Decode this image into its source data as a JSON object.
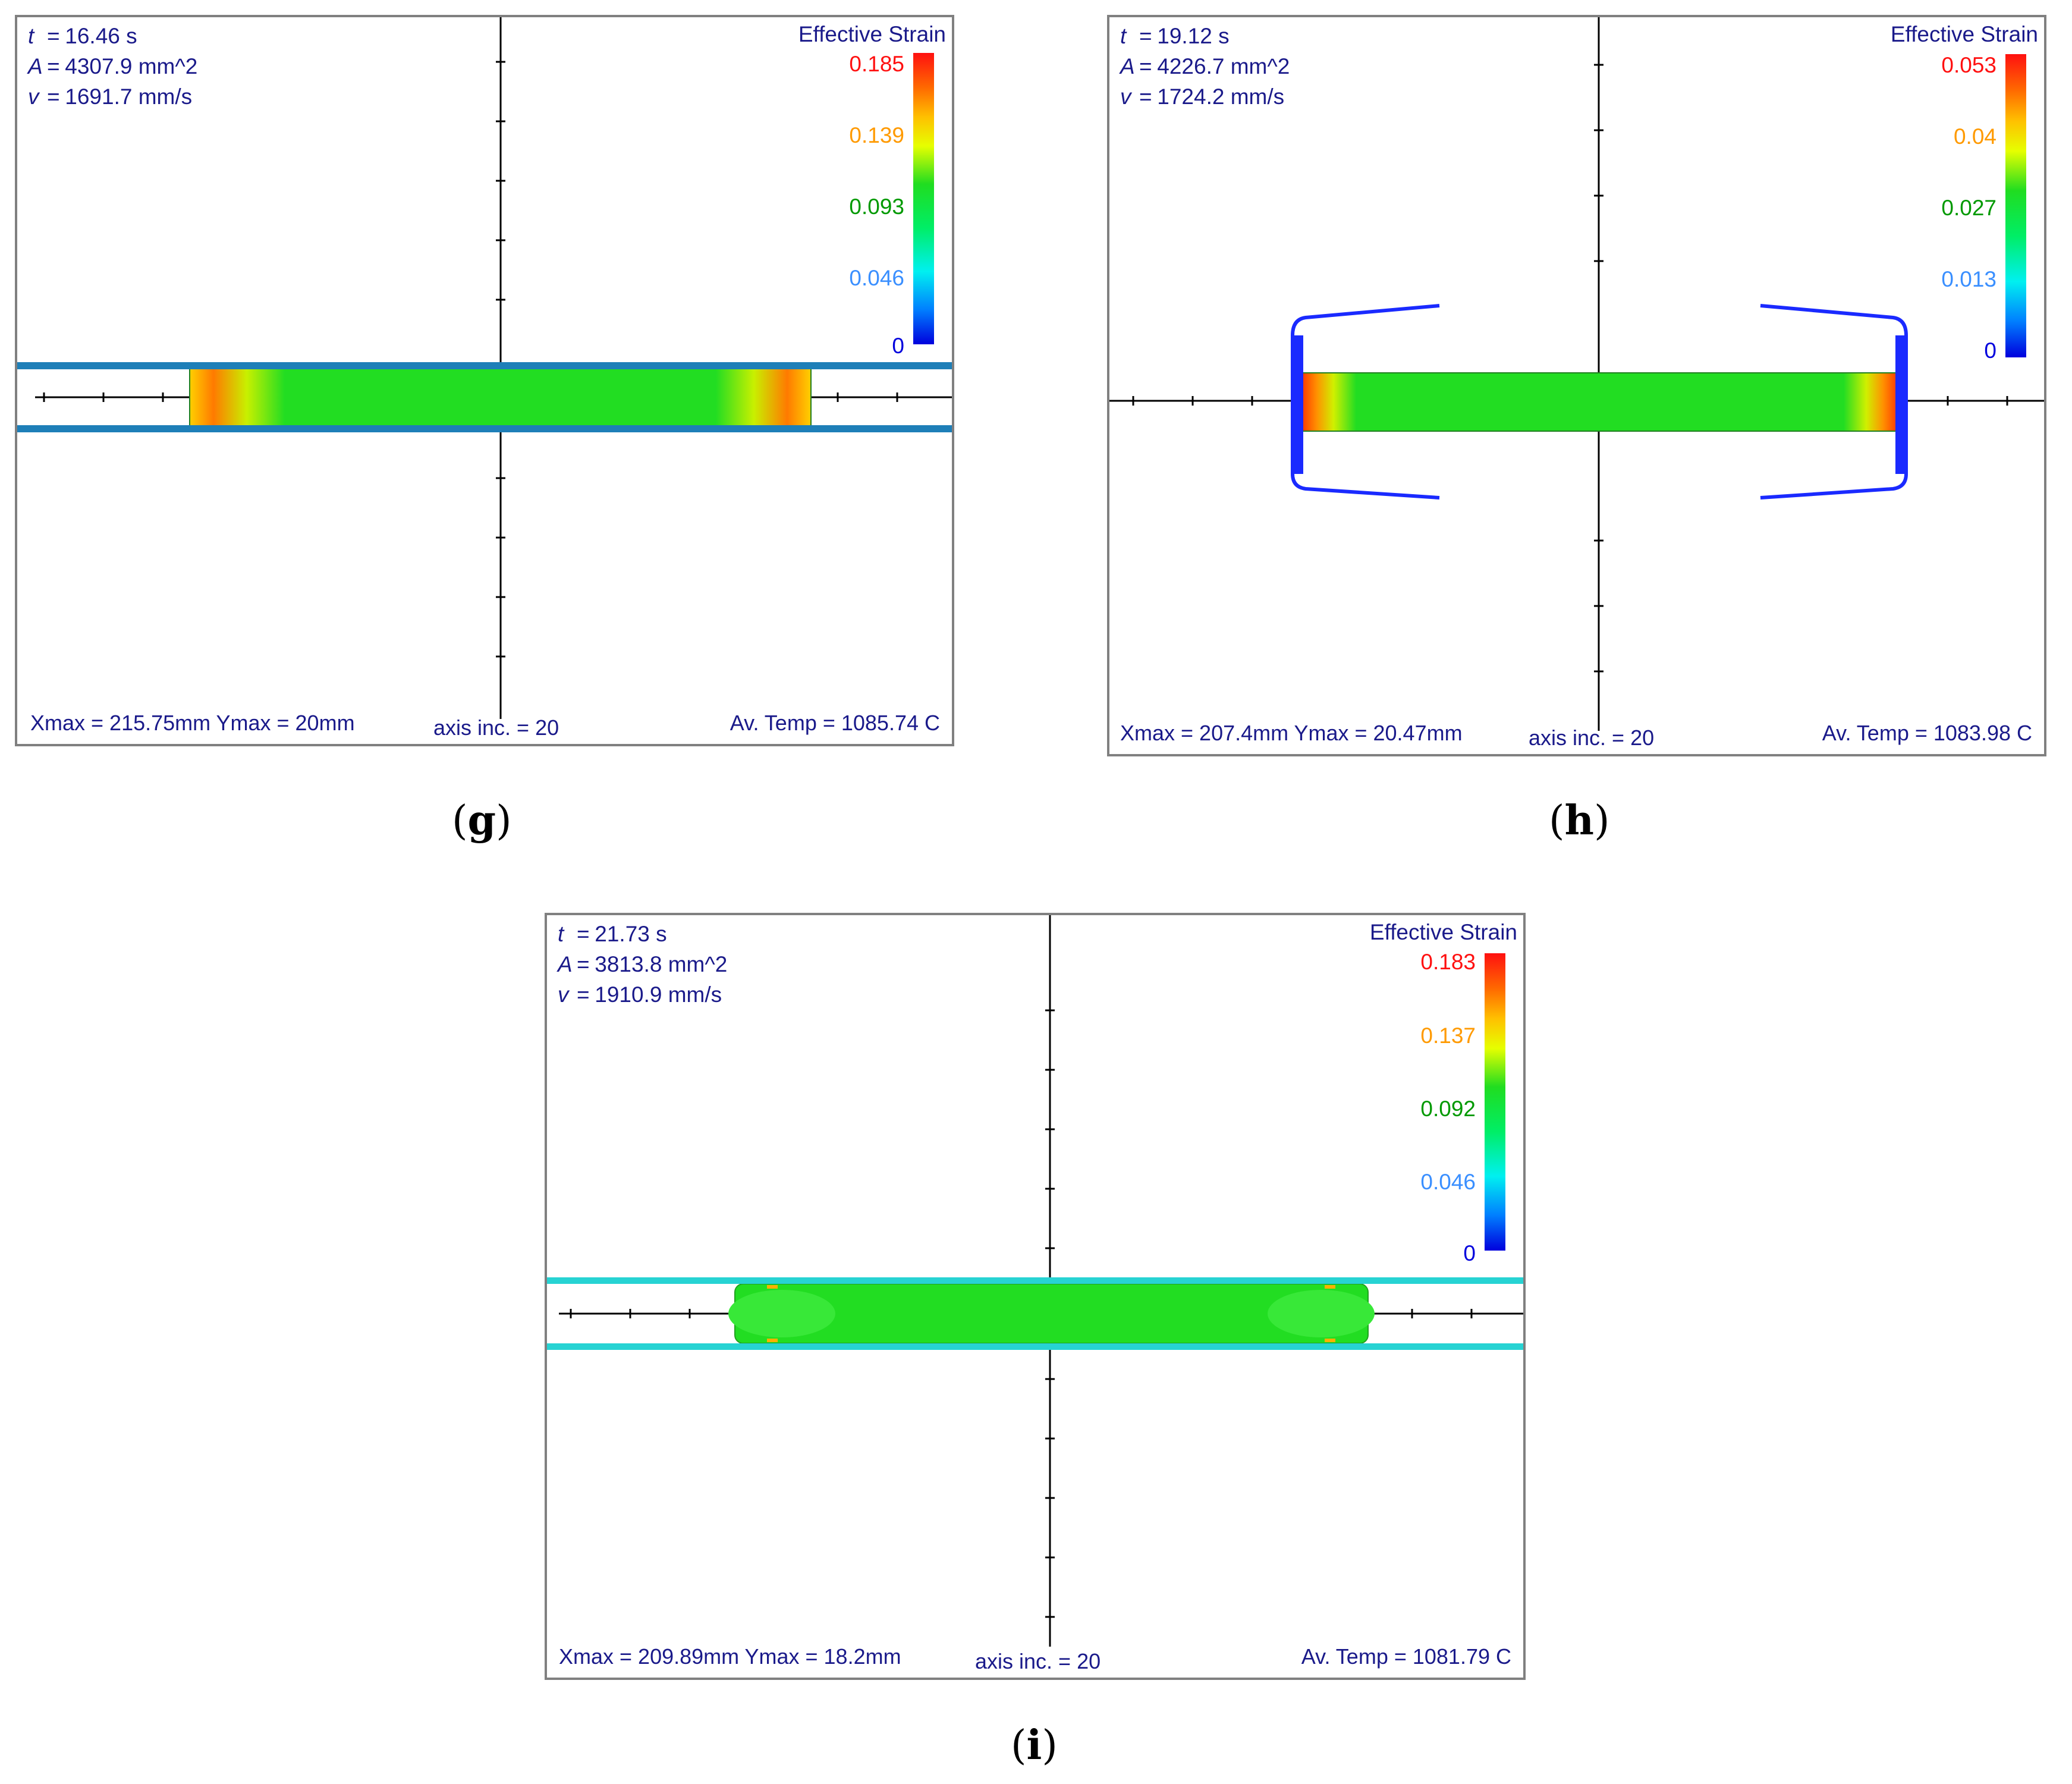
{
  "legend_colors": {
    "max": "#ff1010",
    "upper": "#ff9a00",
    "mid": "#009900",
    "lower": "#3a8fff",
    "min": "#0000dd",
    "text": "#1a1a8a"
  },
  "panels": [
    {
      "id": "g",
      "caption_letter": "g",
      "info": {
        "t_symbol": "t",
        "t_value": "16.46 s",
        "A_symbol": "A",
        "A_value": "4307.9 mm^2",
        "v_symbol": "v",
        "v_value": "1691.7 mm/s"
      },
      "legend": {
        "title": "Effective Strain",
        "ticks": [
          "0.185",
          "0.139",
          "0.093",
          "0.046",
          "0"
        ]
      },
      "footer": {
        "max": "Xmax = 215.75mm  Ymax = 20mm",
        "axis": "axis inc. = 20",
        "temp": "Av. Temp = 1085.74 C"
      },
      "die_color": "#1e7fb8",
      "die_shape": "parallel plates"
    },
    {
      "id": "h",
      "caption_letter": "h",
      "info": {
        "t_symbol": "t",
        "t_value": "19.12 s",
        "A_symbol": "A",
        "A_value": "4226.7 mm^2",
        "v_symbol": "v",
        "v_value": "1724.2 mm/s"
      },
      "legend": {
        "title": "Effective Strain",
        "ticks": [
          "0.053",
          "0.04",
          "0.027",
          "0.013",
          "0"
        ]
      },
      "footer": {
        "max": "Xmax = 207.4mm  Ymax = 20.47mm",
        "axis": "axis inc. = 20",
        "temp": "Av. Temp = 1083.98 C"
      },
      "die_color": "#1a2aff",
      "die_shape": "end brackets"
    },
    {
      "id": "i",
      "caption_letter": "i",
      "info": {
        "t_symbol": "t",
        "t_value": "21.73 s",
        "A_symbol": "A",
        "A_value": "3813.8 mm^2",
        "v_symbol": "v",
        "v_value": "1910.9 mm/s"
      },
      "legend": {
        "title": "Effective Strain",
        "ticks": [
          "0.183",
          "0.137",
          "0.092",
          "0.046",
          "0"
        ]
      },
      "footer": {
        "max": "Xmax = 209.89mm  Ymax = 18.2mm",
        "axis": "axis inc. = 20",
        "temp": "Av. Temp = 1081.79 C"
      },
      "die_color": "#27d3d3",
      "die_shape": "parallel plates"
    }
  ]
}
